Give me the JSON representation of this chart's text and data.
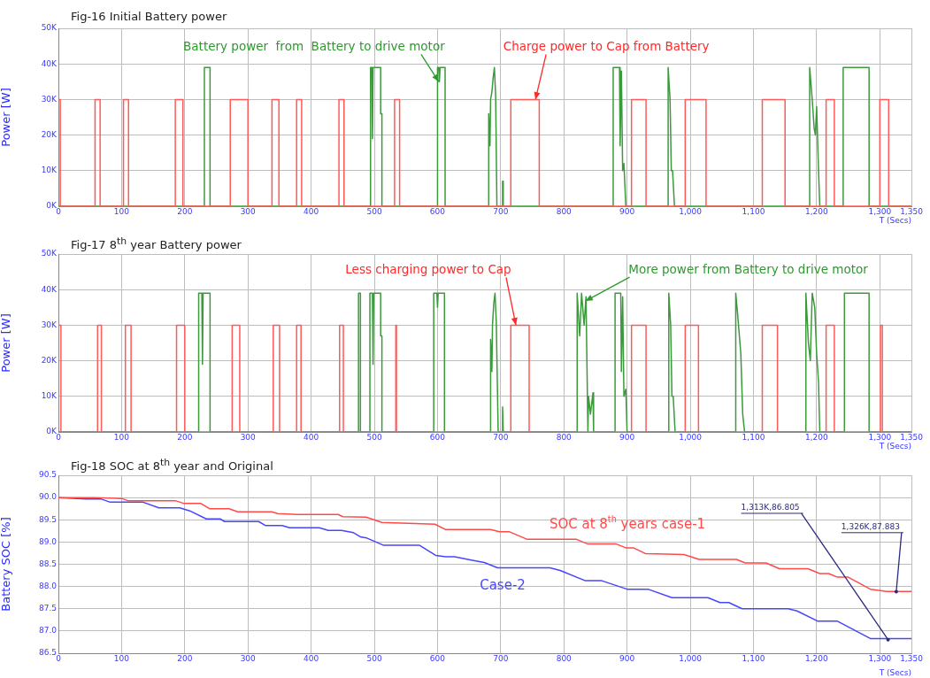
{
  "chart_data": [
    {
      "type": "line",
      "title": "Fig-16  Initial Battery power",
      "xlabel": "T (Secs)",
      "ylabel": "Power [W]",
      "xlim": [
        0,
        1350
      ],
      "ylim": [
        0,
        50000
      ],
      "grid": true,
      "xticks": [
        0,
        100,
        200,
        300,
        400,
        500,
        600,
        700,
        800,
        900,
        {
          "value": 1000,
          "label": "1,000"
        },
        {
          "value": 1100,
          "label": "1,100"
        },
        {
          "value": 1200,
          "label": "1,200"
        },
        {
          "value": 1300,
          "label": "1,300"
        },
        {
          "value": 1350,
          "label": "1,350"
        }
      ],
      "yticks": [
        {
          "value": 0,
          "label": "0K"
        },
        {
          "value": 10000,
          "label": "10K"
        },
        {
          "value": 20000,
          "label": "20K"
        },
        {
          "value": 30000,
          "label": "30K"
        },
        {
          "value": 40000,
          "label": "40K"
        },
        {
          "value": 50000,
          "label": "50K"
        }
      ],
      "series": [
        {
          "type": "line",
          "color": "#ff5a5a",
          "x": [
            0,
            3,
            3,
            58,
            58,
            66,
            66,
            103,
            103,
            111,
            111,
            185,
            185,
            197,
            197,
            272,
            272,
            300,
            300,
            338,
            338,
            349,
            349,
            377,
            377,
            385,
            385,
            444,
            444,
            452,
            452,
            532,
            532,
            540,
            540,
            716,
            716,
            761,
            761,
            907,
            907,
            930,
            930,
            992,
            992,
            1025,
            1025,
            1114,
            1114,
            1150,
            1150,
            1215,
            1215,
            1228,
            1228,
            1300,
            1300,
            1314,
            1314,
            1350
          ],
          "values": [
            30000,
            30000,
            0,
            0,
            30000,
            30000,
            0,
            0,
            30000,
            30000,
            0,
            0,
            30000,
            30000,
            0,
            0,
            30000,
            30000,
            0,
            0,
            30000,
            30000,
            0,
            0,
            30000,
            30000,
            0,
            0,
            30000,
            30000,
            0,
            0,
            30000,
            30000,
            0,
            0,
            30000,
            30000,
            0,
            0,
            30000,
            30000,
            0,
            0,
            30000,
            30000,
            0,
            0,
            30000,
            30000,
            0,
            0,
            30000,
            30000,
            0,
            0,
            30000,
            30000,
            0,
            0
          ]
        },
        {
          "type": "line",
          "color": "#3c9a3c",
          "x": [
            0,
            231,
            231,
            240,
            240,
            494,
            494,
            496,
            497,
            498,
            510,
            510,
            512,
            512,
            600,
            600,
            602,
            603,
            604,
            612,
            612,
            681,
            681,
            683,
            684,
            686,
            688,
            690,
            692,
            694,
            703,
            703,
            704,
            704,
            878,
            878,
            888,
            889,
            891,
            893,
            895,
            898,
            965,
            965,
            968,
            970,
            972,
            975,
            1189,
            1189,
            1193,
            1196,
            1198,
            1200,
            1203,
            1205,
            1242,
            1242,
            1283,
            1283,
            1350
          ],
          "values": [
            0,
            0,
            39000,
            39000,
            0,
            0,
            39000,
            39000,
            19000,
            39000,
            39000,
            26000,
            26000,
            0,
            0,
            39000,
            39000,
            35000,
            39000,
            39000,
            0,
            0,
            26000,
            17000,
            30000,
            32000,
            36000,
            39000,
            31000,
            0,
            0,
            7000,
            7000,
            0,
            0,
            39000,
            39000,
            17000,
            38000,
            10000,
            12000,
            0,
            0,
            39000,
            30000,
            10000,
            10000,
            0,
            0,
            39000,
            30000,
            22000,
            20000,
            28000,
            10000,
            0,
            0,
            39000,
            39000,
            0,
            0
          ]
        }
      ],
      "annotations": [
        {
          "text": "Battery power  from  Battery to drive motor",
          "x": 602,
          "y": 35000
        },
        {
          "text": "Charge power to Cap from Battery",
          "x": 755,
          "y": 30000
        }
      ]
    },
    {
      "type": "line",
      "title": "Fig-17  8$^{th}$ year Battery power",
      "xlabel": "T (Secs)",
      "ylabel": "Power [W]",
      "xlim": [
        0,
        1350
      ],
      "ylim": [
        0,
        50000
      ],
      "grid": true,
      "xticks": [
        0,
        100,
        200,
        300,
        400,
        500,
        600,
        700,
        800,
        900,
        {
          "value": 1000,
          "label": "1,000"
        },
        {
          "value": 1100,
          "label": "1,100"
        },
        {
          "value": 1200,
          "label": "1,200"
        },
        {
          "value": 1300,
          "label": "1,300"
        },
        {
          "value": 1350,
          "label": "1,350"
        }
      ],
      "yticks": [
        {
          "value": 0,
          "label": "0K"
        },
        {
          "value": 10000,
          "label": "10K"
        },
        {
          "value": 20000,
          "label": "20K"
        },
        {
          "value": 30000,
          "label": "30K"
        },
        {
          "value": 40000,
          "label": "40K"
        },
        {
          "value": 50000,
          "label": "50K"
        }
      ],
      "series": [
        {
          "type": "line",
          "color": "#ff5a5a",
          "x": [
            0,
            4,
            4,
            62,
            62,
            68,
            68,
            106,
            106,
            115,
            115,
            187,
            187,
            200,
            200,
            275,
            275,
            287,
            287,
            340,
            340,
            350,
            350,
            377,
            377,
            384,
            384,
            445,
            445,
            451,
            451,
            534,
            534,
            535,
            535,
            716,
            716,
            745,
            745,
            907,
            907,
            930,
            930,
            992,
            992,
            1013,
            1013,
            1114,
            1114,
            1138,
            1138,
            1215,
            1215,
            1228,
            1228,
            1301,
            1301,
            1304,
            1304,
            1350
          ],
          "values": [
            30000,
            30000,
            0,
            0,
            30000,
            30000,
            0,
            0,
            30000,
            30000,
            0,
            0,
            30000,
            30000,
            0,
            0,
            30000,
            30000,
            0,
            0,
            30000,
            30000,
            0,
            0,
            30000,
            30000,
            0,
            0,
            30000,
            30000,
            0,
            0,
            30000,
            30000,
            0,
            0,
            30000,
            30000,
            0,
            0,
            30000,
            30000,
            0,
            0,
            30000,
            30000,
            0,
            0,
            30000,
            30000,
            0,
            0,
            30000,
            30000,
            0,
            0,
            30000,
            30000,
            0,
            0
          ]
        },
        {
          "type": "line",
          "color": "#3c9a3c",
          "x": [
            0,
            222,
            222,
            227,
            228,
            229,
            240,
            240,
            475,
            475,
            478,
            478,
            493,
            493,
            497,
            498,
            499,
            510,
            510,
            512,
            512,
            594,
            594,
            599,
            600,
            601,
            611,
            611,
            684,
            684,
            686,
            687,
            689,
            691,
            693,
            696,
            703,
            703,
            704,
            821,
            821,
            825,
            828,
            832,
            835,
            838,
            839,
            842,
            846,
            847,
            881,
            881,
            890,
            891,
            893,
            895,
            898,
            900,
            966,
            966,
            969,
            971,
            973,
            976,
            1072,
            1072,
            1075,
            1080,
            1083,
            1086,
            1183,
            1183,
            1187,
            1190,
            1193,
            1197,
            1200,
            1203,
            1205,
            1244,
            1244,
            1283,
            1283,
            1350
          ],
          "values": [
            0,
            0,
            39000,
            39000,
            19000,
            39000,
            39000,
            0,
            0,
            39000,
            39000,
            0,
            0,
            39000,
            39000,
            19000,
            39000,
            39000,
            27000,
            27000,
            0,
            0,
            39000,
            39000,
            35000,
            39000,
            39000,
            0,
            0,
            26000,
            17000,
            30000,
            36000,
            39000,
            31000,
            0,
            0,
            7000,
            0,
            0,
            39000,
            27000,
            39000,
            30000,
            38000,
            0,
            10000,
            5000,
            11000,
            0,
            0,
            39000,
            39000,
            17000,
            38000,
            10000,
            12000,
            0,
            0,
            39000,
            30000,
            10000,
            10000,
            0,
            0,
            39000,
            33000,
            22000,
            5000,
            0,
            0,
            39000,
            25000,
            20000,
            39000,
            35000,
            22000,
            14000,
            0,
            0,
            39000,
            39000,
            0,
            0
          ]
        }
      ],
      "annotations": [
        {
          "text": "Less charging power to Cap",
          "x": 724,
          "y": 30000
        },
        {
          "text": "More power from Battery to drive motor",
          "x": 834,
          "y": 36800
        }
      ]
    },
    {
      "type": "line",
      "title": "Fig-18  SOC at 8$^{th}$ year and Original",
      "xlabel": "T (Secs)",
      "ylabel": "Battery SOC [%]",
      "xlim": [
        0,
        1350
      ],
      "ylim": [
        86.5,
        90.5
      ],
      "grid": true,
      "xticks": [
        0,
        100,
        200,
        300,
        400,
        500,
        600,
        700,
        800,
        900,
        {
          "value": 1000,
          "label": "1,000"
        },
        {
          "value": 1100,
          "label": "1,100"
        },
        {
          "value": 1200,
          "label": "1,200"
        },
        {
          "value": 1300,
          "label": "1,300"
        },
        {
          "value": 1350,
          "label": "1,350"
        }
      ],
      "yticks": [
        90.5,
        {
          "value": 90,
          "label": "90.0"
        },
        89.5,
        {
          "value": 89,
          "label": "89.0"
        },
        88.5,
        {
          "value": 88,
          "label": "88.0"
        },
        87.5,
        {
          "value": 87,
          "label": "87.0"
        },
        86.5
      ],
      "series": [
        {
          "type": "line",
          "name": "SOC at 8$^{th}$ years case-1",
          "color": "#ff4a4a",
          "x": [
            0,
            58,
            100,
            110,
            185,
            198,
            225,
            239,
            270,
            284,
            338,
            347,
            377,
            443,
            450,
            487,
            512,
            596,
            613,
            627,
            684,
            698,
            714,
            742,
            820,
            837,
            882,
            898,
            910,
            929,
            990,
            1014,
            1073,
            1087,
            1120,
            1141,
            1186,
            1205,
            1219,
            1233,
            1250,
            1285,
            1311,
            1350
          ],
          "values": [
            90.0,
            90.0,
            89.98,
            89.93,
            89.93,
            89.87,
            89.87,
            89.75,
            89.75,
            89.68,
            89.68,
            89.64,
            89.62,
            89.62,
            89.57,
            89.56,
            89.44,
            89.4,
            89.28,
            89.28,
            89.28,
            89.23,
            89.23,
            89.06,
            89.06,
            88.96,
            88.96,
            88.87,
            88.87,
            88.74,
            88.72,
            88.61,
            88.61,
            88.53,
            88.53,
            88.4,
            88.4,
            88.29,
            88.29,
            88.21,
            88.21,
            87.94,
            87.89,
            87.89
          ]
        },
        {
          "type": "line",
          "name": "Case-2",
          "color": "#4646ff",
          "x": [
            0,
            44,
            67,
            81,
            133,
            159,
            192,
            208,
            234,
            256,
            263,
            317,
            328,
            354,
            366,
            413,
            427,
            448,
            467,
            479,
            488,
            514,
            571,
            597,
            613,
            627,
            655,
            674,
            695,
            778,
            794,
            834,
            860,
            900,
            933,
            971,
            1028,
            1047,
            1061,
            1082,
            1155,
            1169,
            1202,
            1233,
            1285,
            1350
          ],
          "values": [
            90.0,
            89.97,
            89.97,
            89.9,
            89.9,
            89.77,
            89.77,
            89.7,
            89.52,
            89.52,
            89.46,
            89.46,
            89.37,
            89.37,
            89.32,
            89.32,
            89.26,
            89.26,
            89.21,
            89.11,
            89.09,
            88.93,
            88.93,
            88.7,
            88.67,
            88.67,
            88.59,
            88.54,
            88.42,
            88.42,
            88.36,
            88.13,
            88.13,
            87.94,
            87.94,
            87.75,
            87.75,
            87.64,
            87.64,
            87.5,
            87.5,
            87.45,
            87.22,
            87.22,
            86.83,
            86.83
          ]
        }
      ],
      "annotations": [
        {
          "text": "1,313K,86.805",
          "x": 1313,
          "y": 86.805
        },
        {
          "text": "1,326K,87.883",
          "x": 1326,
          "y": 87.883
        }
      ]
    }
  ]
}
